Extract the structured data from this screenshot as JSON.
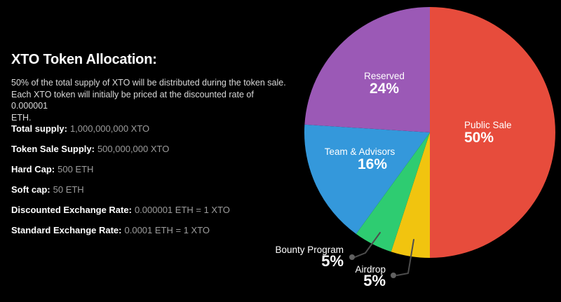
{
  "header": {
    "title": "XTO Token Allocation:"
  },
  "intro": {
    "text": "50% of the total supply of XTO will be distributed during the token sale.\nEach XTO token will initially be priced at the discounted rate of 0.000001\nETH."
  },
  "stats": [
    {
      "label": "Total supply:",
      "value": "1,000,000,000 XTO"
    },
    {
      "label": "Token Sale Supply:",
      "value": "500,000,000 XTO"
    },
    {
      "label": "Hard Cap:",
      "value": "500 ETH"
    },
    {
      "label": "Soft cap:",
      "value": "50 ETH"
    },
    {
      "label": "Discounted Exchange Rate:",
      "value": "0.000001 ETH = 1 XTO"
    },
    {
      "label": "Standard Exchange Rate:",
      "value": "0.0001 ETH = 1 XTO"
    }
  ],
  "chart_data": {
    "type": "pie",
    "unit": "%",
    "start_angle_deg": 0,
    "direction": "clockwise",
    "slices": [
      {
        "name": "Public Sale",
        "value": 50,
        "pct_label": "50%",
        "color": "#e74c3c"
      },
      {
        "name": "Airdrop",
        "value": 5,
        "pct_label": "5%",
        "color": "#f1c40f"
      },
      {
        "name": "Bounty Program",
        "value": 5,
        "pct_label": "5%",
        "color": "#2ecc71"
      },
      {
        "name": "Team & Advisors",
        "value": 16,
        "pct_label": "16%",
        "color": "#3498db"
      },
      {
        "name": "Reserved",
        "value": 24,
        "pct_label": "24%",
        "color": "#9b59b6"
      }
    ],
    "outside_labeled_slices": [
      "Bounty Program",
      "Airdrop"
    ],
    "colors": {
      "background": "#000000",
      "leader_line": "#4d4d4d",
      "label_text": "#ffffff"
    }
  }
}
